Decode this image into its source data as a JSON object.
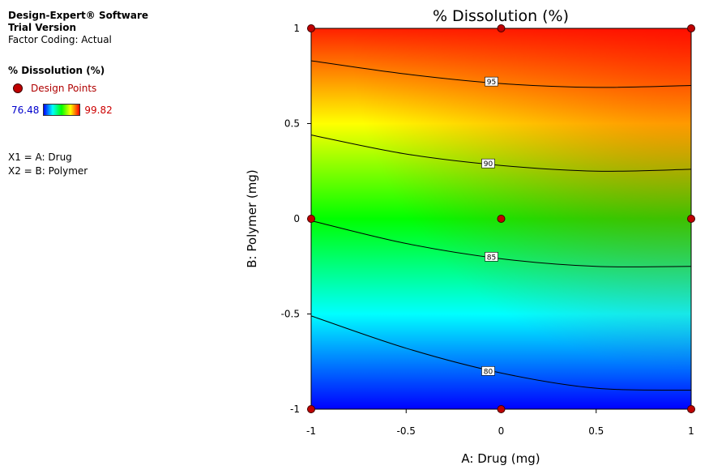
{
  "header": {
    "software": "Design-Expert® Software",
    "version": "Trial Version",
    "coding": "Factor Coding: Actual"
  },
  "legend": {
    "response": "% Dissolution (%)",
    "design_points_label": "Design Points",
    "min_value": "76.48",
    "max_value": "99.82"
  },
  "factors": {
    "x1": "X1 = A: Drug",
    "x2": "X2 = B: Polymer"
  },
  "colors": {
    "low": "#0000ff",
    "mid_low": "#00ffff",
    "mid": "#00ff00",
    "mid_high": "#ffff00",
    "high": "#ff0000",
    "design_point": "#c00000"
  },
  "chart_data": {
    "type": "heatmap",
    "subtype": "contour",
    "title": "% Dissolution (%)",
    "xlabel": "A: Drug (mg)",
    "ylabel": "B: Polymer (mg)",
    "xlim": [
      -1,
      1
    ],
    "ylim": [
      -1,
      1
    ],
    "x_ticks": [
      "-1",
      "-0.5",
      "0",
      "0.5",
      "1"
    ],
    "y_ticks": [
      "-1",
      "-0.5",
      "0",
      "0.5",
      "1"
    ],
    "color_min": 76.48,
    "color_max": 99.82,
    "contours": [
      {
        "level": 80,
        "label": "80",
        "points": [
          [
            -1,
            -0.51
          ],
          [
            -0.5,
            -0.68
          ],
          [
            0,
            -0.81
          ],
          [
            0.5,
            -0.89
          ],
          [
            1,
            -0.9
          ]
        ]
      },
      {
        "level": 85,
        "label": "85",
        "points": [
          [
            -1,
            -0.01
          ],
          [
            -0.5,
            -0.13
          ],
          [
            0,
            -0.21
          ],
          [
            0.5,
            -0.25
          ],
          [
            1,
            -0.25
          ]
        ]
      },
      {
        "level": 90,
        "label": "90",
        "points": [
          [
            -1,
            0.44
          ],
          [
            -0.5,
            0.34
          ],
          [
            0,
            0.28
          ],
          [
            0.5,
            0.25
          ],
          [
            1,
            0.26
          ]
        ]
      },
      {
        "level": 95,
        "label": "95",
        "points": [
          [
            -1,
            0.83
          ],
          [
            -0.5,
            0.76
          ],
          [
            0,
            0.71
          ],
          [
            0.5,
            0.69
          ],
          [
            1,
            0.7
          ]
        ]
      }
    ],
    "design_points": [
      [
        -1,
        1
      ],
      [
        0,
        1
      ],
      [
        1,
        1
      ],
      [
        -1,
        0
      ],
      [
        0,
        0
      ],
      [
        1,
        0
      ],
      [
        -1,
        -1
      ],
      [
        0,
        -1
      ],
      [
        1,
        -1
      ]
    ]
  }
}
